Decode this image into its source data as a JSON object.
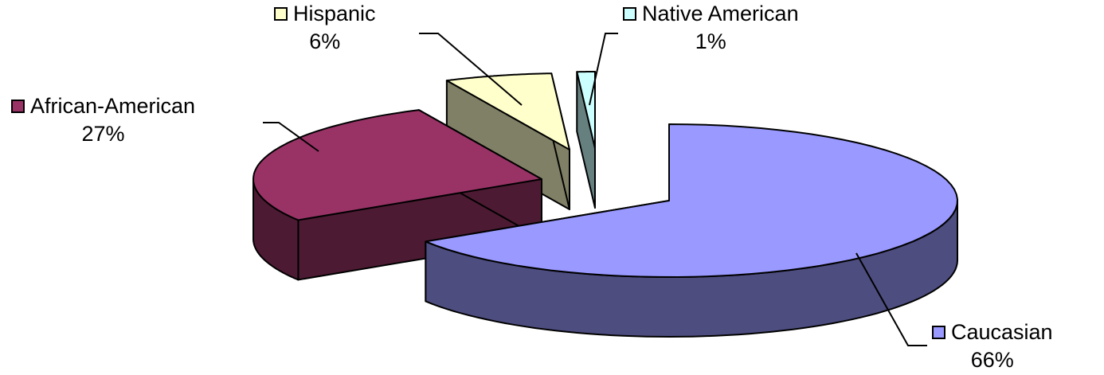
{
  "chart_data": {
    "type": "pie",
    "style": "3d-exploded",
    "categories": [
      "Caucasian",
      "African-American",
      "Hispanic",
      "Native American"
    ],
    "values": [
      66,
      27,
      6,
      1
    ],
    "labels": [
      "66%",
      "27%",
      "6%",
      "1%"
    ],
    "colors": {
      "top": [
        "#9999ff",
        "#993366",
        "#ffffcc",
        "#ccffff"
      ],
      "side": [
        "#4d4d80",
        "#4d1a33",
        "#808066",
        "#668080"
      ]
    },
    "legend": "none (category labels with swatches beside each slice)"
  }
}
